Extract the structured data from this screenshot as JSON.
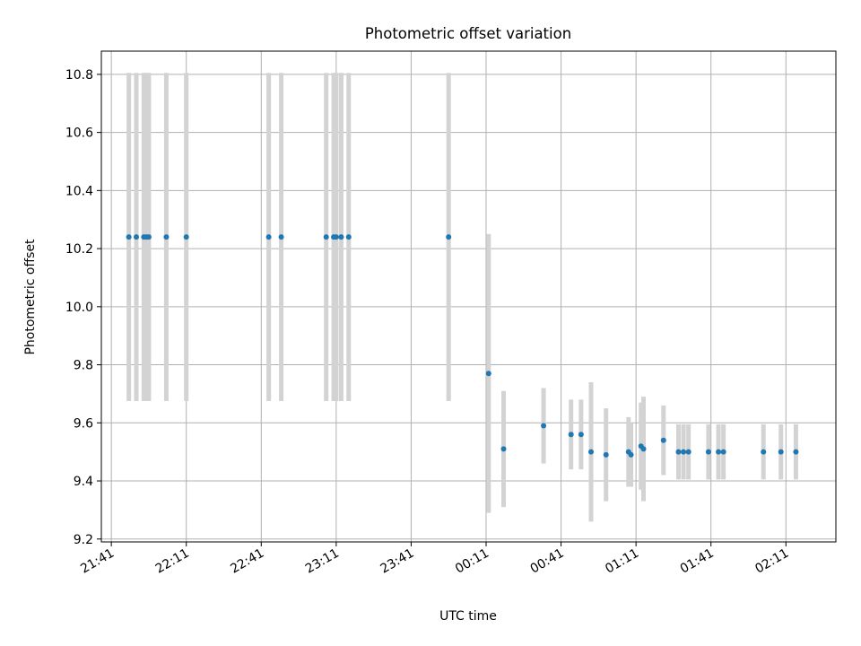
{
  "chart_data": {
    "type": "scatter",
    "title": "Photometric offset variation",
    "xlabel": "UTC time",
    "ylabel": "Photometric offset",
    "x_ticks": [
      "21:41",
      "22:11",
      "22:41",
      "23:11",
      "23:41",
      "00:11",
      "00:41",
      "01:11",
      "01:41",
      "02:11"
    ],
    "y_ticks": [
      "9.2",
      "9.4",
      "9.6",
      "9.8",
      "10.0",
      "10.2",
      "10.4",
      "10.6",
      "10.8"
    ],
    "xlim": [
      "21:37",
      "02:31"
    ],
    "ylim": [
      9.19,
      10.88
    ],
    "grid": true,
    "point_color": "#1f77b4",
    "errorbar_color": "#d3d3d3",
    "points": [
      {
        "x": "21:48",
        "y": 10.24,
        "err": 0.565
      },
      {
        "x": "21:51",
        "y": 10.24,
        "err": 0.565
      },
      {
        "x": "21:54",
        "y": 10.24,
        "err": 0.565
      },
      {
        "x": "21:55",
        "y": 10.24,
        "err": 0.565
      },
      {
        "x": "21:56",
        "y": 10.24,
        "err": 0.565
      },
      {
        "x": "22:03",
        "y": 10.24,
        "err": 0.565
      },
      {
        "x": "22:11",
        "y": 10.24,
        "err": 0.565
      },
      {
        "x": "22:44",
        "y": 10.24,
        "err": 0.565
      },
      {
        "x": "22:49",
        "y": 10.24,
        "err": 0.565
      },
      {
        "x": "23:07",
        "y": 10.24,
        "err": 0.565
      },
      {
        "x": "23:10",
        "y": 10.24,
        "err": 0.565
      },
      {
        "x": "23:11",
        "y": 10.24,
        "err": 0.565
      },
      {
        "x": "23:13",
        "y": 10.24,
        "err": 0.565
      },
      {
        "x": "23:16",
        "y": 10.24,
        "err": 0.565
      },
      {
        "x": "23:56",
        "y": 10.24,
        "err": 0.565
      },
      {
        "x": "00:12",
        "y": 9.77,
        "err": 0.48
      },
      {
        "x": "00:18",
        "y": 9.51,
        "err": 0.2
      },
      {
        "x": "00:34",
        "y": 9.59,
        "err": 0.13
      },
      {
        "x": "00:45",
        "y": 9.56,
        "err": 0.12
      },
      {
        "x": "00:49",
        "y": 9.56,
        "err": 0.12
      },
      {
        "x": "00:53",
        "y": 9.5,
        "err": 0.24
      },
      {
        "x": "00:59",
        "y": 9.49,
        "err": 0.16
      },
      {
        "x": "01:08",
        "y": 9.5,
        "err": 0.12
      },
      {
        "x": "01:09",
        "y": 9.49,
        "err": 0.11
      },
      {
        "x": "01:13",
        "y": 9.52,
        "err": 0.15
      },
      {
        "x": "01:14",
        "y": 9.51,
        "err": 0.18
      },
      {
        "x": "01:22",
        "y": 9.54,
        "err": 0.12
      },
      {
        "x": "01:28",
        "y": 9.5,
        "err": 0.095
      },
      {
        "x": "01:30",
        "y": 9.5,
        "err": 0.095
      },
      {
        "x": "01:32",
        "y": 9.5,
        "err": 0.095
      },
      {
        "x": "01:40",
        "y": 9.5,
        "err": 0.095
      },
      {
        "x": "01:44",
        "y": 9.5,
        "err": 0.095
      },
      {
        "x": "01:46",
        "y": 9.5,
        "err": 0.095
      },
      {
        "x": "02:02",
        "y": 9.5,
        "err": 0.095
      },
      {
        "x": "02:09",
        "y": 9.5,
        "err": 0.095
      },
      {
        "x": "02:15",
        "y": 9.5,
        "err": 0.095
      }
    ]
  }
}
